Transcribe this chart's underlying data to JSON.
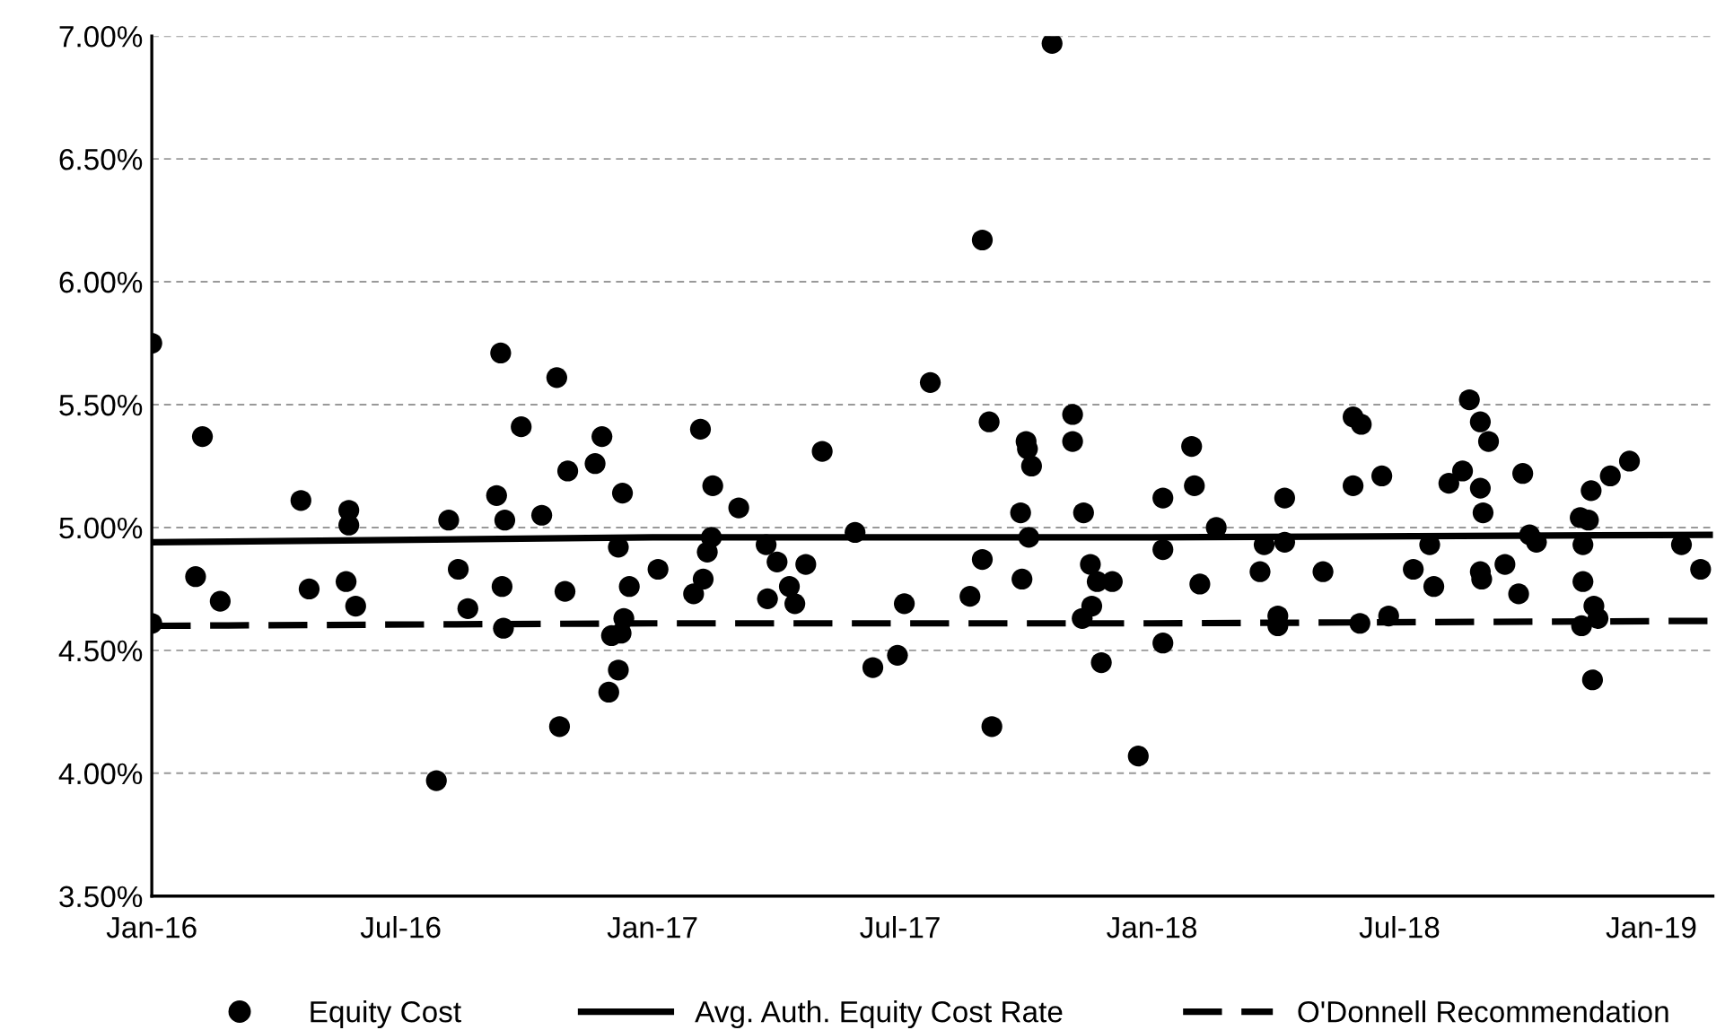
{
  "chart_data": {
    "type": "scatter",
    "xlim": [
      "2016-01-01",
      "2019-02-15"
    ],
    "xticks": [
      {
        "value": "2016-01-01",
        "label": "Jan-16"
      },
      {
        "value": "2016-07-01",
        "label": "Jul-16"
      },
      {
        "value": "2017-01-01",
        "label": "Jan-17"
      },
      {
        "value": "2017-07-01",
        "label": "Jul-17"
      },
      {
        "value": "2018-01-01",
        "label": "Jan-18"
      },
      {
        "value": "2018-07-01",
        "label": "Jul-18"
      },
      {
        "value": "2019-01-01",
        "label": "Jan-19"
      }
    ],
    "ylim": [
      3.5,
      7.0
    ],
    "yticks": [
      {
        "value": 3.5,
        "label": "3.50%"
      },
      {
        "value": 4.0,
        "label": "4.00%"
      },
      {
        "value": 4.5,
        "label": "4.50%"
      },
      {
        "value": 5.0,
        "label": "5.00%"
      },
      {
        "value": 5.5,
        "label": "5.50%"
      },
      {
        "value": 6.0,
        "label": "6.00%"
      },
      {
        "value": 6.5,
        "label": "6.50%"
      },
      {
        "value": 7.0,
        "label": "7.00%"
      }
    ],
    "grid": "y",
    "legend": "bottom",
    "series": [
      {
        "name": "Equity Cost",
        "color": "#000000",
        "marker": "circle",
        "x": [
          "2016-01-01",
          "2016-01-01",
          "2016-02-02",
          "2016-02-07",
          "2016-02-20",
          "2016-04-19",
          "2016-04-25",
          "2016-05-22",
          "2016-05-24",
          "2016-05-24",
          "2016-05-29",
          "2016-07-27",
          "2016-08-05",
          "2016-08-12",
          "2016-08-19",
          "2016-09-09",
          "2016-09-12",
          "2016-09-13",
          "2016-09-14",
          "2016-09-15",
          "2016-09-27",
          "2016-10-12",
          "2016-10-23",
          "2016-10-25",
          "2016-10-29",
          "2016-10-31",
          "2016-11-20",
          "2016-11-25",
          "2016-11-30",
          "2016-12-02",
          "2016-12-07",
          "2016-12-07",
          "2016-12-09",
          "2016-12-10",
          "2016-12-11",
          "2016-12-15",
          "2017-01-05",
          "2017-01-31",
          "2017-02-05",
          "2017-02-07",
          "2017-02-10",
          "2017-02-13",
          "2017-02-14",
          "2017-03-05",
          "2017-03-25",
          "2017-03-26",
          "2017-04-02",
          "2017-04-11",
          "2017-04-15",
          "2017-04-23",
          "2017-05-05",
          "2017-05-29",
          "2017-06-11",
          "2017-06-29",
          "2017-07-04",
          "2017-07-23",
          "2017-08-21",
          "2017-08-30",
          "2017-08-30",
          "2017-09-04",
          "2017-09-06",
          "2017-09-27",
          "2017-09-28",
          "2017-10-01",
          "2017-10-02",
          "2017-10-03",
          "2017-10-05",
          "2017-10-20",
          "2017-11-04",
          "2017-11-04",
          "2017-11-11",
          "2017-11-12",
          "2017-11-17",
          "2017-11-18",
          "2017-11-22",
          "2017-11-25",
          "2017-12-03",
          "2017-12-22",
          "2018-01-09",
          "2018-01-09",
          "2018-01-09",
          "2018-01-30",
          "2018-02-01",
          "2018-02-05",
          "2018-02-17",
          "2018-03-21",
          "2018-03-24",
          "2018-04-03",
          "2018-04-03",
          "2018-04-08",
          "2018-04-08",
          "2018-05-06",
          "2018-05-28",
          "2018-05-28",
          "2018-06-02",
          "2018-06-03",
          "2018-06-18",
          "2018-06-23",
          "2018-07-11",
          "2018-07-23",
          "2018-07-26",
          "2018-08-06",
          "2018-08-16",
          "2018-08-21",
          "2018-08-29",
          "2018-08-29",
          "2018-08-29",
          "2018-08-30",
          "2018-08-31",
          "2018-09-04",
          "2018-09-16",
          "2018-09-26",
          "2018-09-29",
          "2018-10-04",
          "2018-10-09",
          "2018-11-10",
          "2018-11-11",
          "2018-11-12",
          "2018-11-12",
          "2018-11-16",
          "2018-11-18",
          "2018-11-19",
          "2018-11-20",
          "2018-11-23",
          "2018-12-02",
          "2018-12-16",
          "2019-01-23",
          "2019-02-06"
        ],
        "values": [
          5.75,
          4.61,
          4.8,
          5.37,
          4.7,
          5.11,
          4.75,
          4.78,
          5.07,
          5.01,
          4.68,
          3.97,
          5.03,
          4.83,
          4.67,
          5.13,
          5.71,
          4.76,
          4.59,
          5.03,
          5.41,
          5.05,
          5.61,
          4.19,
          4.74,
          5.23,
          5.26,
          5.37,
          4.33,
          4.56,
          4.92,
          4.42,
          4.57,
          5.14,
          4.63,
          4.76,
          4.83,
          4.73,
          5.4,
          4.79,
          4.9,
          4.96,
          5.17,
          5.08,
          4.93,
          4.71,
          4.86,
          4.76,
          4.69,
          4.85,
          5.31,
          4.98,
          4.43,
          4.48,
          4.69,
          5.59,
          4.72,
          6.17,
          4.87,
          5.43,
          4.19,
          5.06,
          4.79,
          5.35,
          5.32,
          4.96,
          5.25,
          6.97,
          5.46,
          5.35,
          4.63,
          5.06,
          4.85,
          4.68,
          4.78,
          4.45,
          4.78,
          4.07,
          5.12,
          4.91,
          4.53,
          5.33,
          5.17,
          4.77,
          5.0,
          4.82,
          4.93,
          4.64,
          4.6,
          5.12,
          4.94,
          4.82,
          5.45,
          5.17,
          4.61,
          5.42,
          5.21,
          4.64,
          4.83,
          4.93,
          4.76,
          5.18,
          5.23,
          5.52,
          5.43,
          5.16,
          4.82,
          4.79,
          5.06,
          5.35,
          4.85,
          4.73,
          5.22,
          4.97,
          4.94,
          5.04,
          4.6,
          4.93,
          4.78,
          5.03,
          5.15,
          4.38,
          4.68,
          4.63,
          5.21,
          5.27,
          4.93,
          4.83
        ]
      },
      {
        "name": "Avg. Auth. Equity Cost Rate",
        "type": "line",
        "color": "#000000",
        "marker": "none",
        "line_style": "solid",
        "x": [
          "2016-01-01",
          "2017-01-01",
          "2018-01-01",
          "2019-02-15"
        ],
        "values": [
          4.94,
          4.96,
          4.96,
          4.97
        ]
      },
      {
        "name": "O'Donnell Recommendation",
        "type": "line",
        "color": "#000000",
        "marker": "none",
        "line_style": "dashed",
        "x": [
          "2016-01-01",
          "2017-01-01",
          "2018-01-01",
          "2019-02-15"
        ],
        "values": [
          4.6,
          4.61,
          4.61,
          4.62
        ]
      }
    ]
  }
}
